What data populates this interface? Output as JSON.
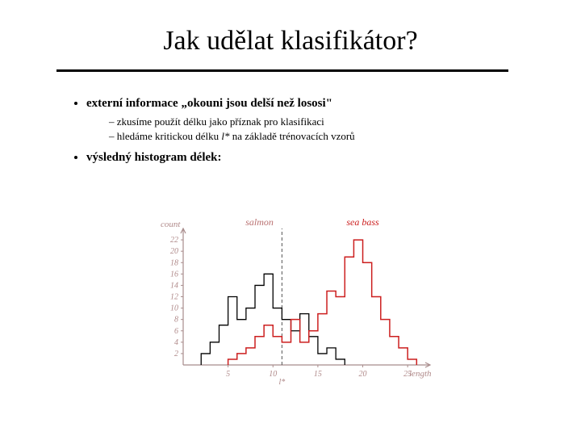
{
  "title": "Jak udělat klasifikátor?",
  "bullets": {
    "b1": "externí informace „okouni jsou delší než lososi\"",
    "b1s1": "zkusíme použít délku jako příznak pro klasifikaci",
    "b1s2_pre": "hledáme kritickou délku ",
    "b1s2_sym": "l*",
    "b1s2_post": " na základě trénovacích vzorů",
    "b2": "výsledný histogram délek:"
  },
  "chart": {
    "type": "step-histogram",
    "title_left": "salmon",
    "title_right": "sea bass",
    "ylabel": "count",
    "xlabel": "length",
    "xlim": [
      0,
      27.5
    ],
    "ylim": [
      0,
      24
    ],
    "xticks": [
      5,
      10,
      15,
      20,
      25
    ],
    "yticks": [
      2,
      4,
      6,
      8,
      10,
      12,
      14,
      16,
      18,
      20,
      22
    ],
    "l_star": 11,
    "l_star_label": "l*",
    "axis_color": "#a88c8c",
    "salmon_color": "#000000",
    "bass_color": "#cc1f1f",
    "bg": "#ffffff",
    "series": {
      "salmon": [
        [
          2,
          0
        ],
        [
          2,
          2
        ],
        [
          3,
          2
        ],
        [
          3,
          4
        ],
        [
          4,
          4
        ],
        [
          4,
          7
        ],
        [
          5,
          7
        ],
        [
          5,
          12
        ],
        [
          6,
          12
        ],
        [
          6,
          8
        ],
        [
          7,
          8
        ],
        [
          7,
          10
        ],
        [
          8,
          10
        ],
        [
          8,
          14
        ],
        [
          9,
          14
        ],
        [
          9,
          16
        ],
        [
          10,
          16
        ],
        [
          10,
          10
        ],
        [
          11,
          10
        ],
        [
          11,
          8
        ],
        [
          12,
          8
        ],
        [
          12,
          6
        ],
        [
          13,
          6
        ],
        [
          13,
          9
        ],
        [
          14,
          9
        ],
        [
          14,
          5
        ],
        [
          15,
          5
        ],
        [
          15,
          2
        ],
        [
          16,
          2
        ],
        [
          16,
          3
        ],
        [
          17,
          3
        ],
        [
          17,
          1
        ],
        [
          18,
          1
        ],
        [
          18,
          0
        ]
      ],
      "bass": [
        [
          5,
          0
        ],
        [
          5,
          1
        ],
        [
          6,
          1
        ],
        [
          6,
          2
        ],
        [
          7,
          2
        ],
        [
          7,
          3
        ],
        [
          8,
          3
        ],
        [
          8,
          5
        ],
        [
          9,
          5
        ],
        [
          9,
          7
        ],
        [
          10,
          7
        ],
        [
          10,
          5
        ],
        [
          11,
          5
        ],
        [
          11,
          4
        ],
        [
          12,
          4
        ],
        [
          12,
          8
        ],
        [
          13,
          8
        ],
        [
          13,
          4
        ],
        [
          14,
          4
        ],
        [
          14,
          6
        ],
        [
          15,
          6
        ],
        [
          15,
          9
        ],
        [
          16,
          9
        ],
        [
          16,
          13
        ],
        [
          17,
          13
        ],
        [
          17,
          12
        ],
        [
          18,
          12
        ],
        [
          18,
          19
        ],
        [
          19,
          19
        ],
        [
          19,
          22
        ],
        [
          20,
          22
        ],
        [
          20,
          18
        ],
        [
          21,
          18
        ],
        [
          21,
          12
        ],
        [
          22,
          12
        ],
        [
          22,
          8
        ],
        [
          23,
          8
        ],
        [
          23,
          5
        ],
        [
          24,
          5
        ],
        [
          24,
          3
        ],
        [
          25,
          3
        ],
        [
          25,
          1
        ],
        [
          26,
          1
        ],
        [
          26,
          0
        ]
      ]
    }
  }
}
